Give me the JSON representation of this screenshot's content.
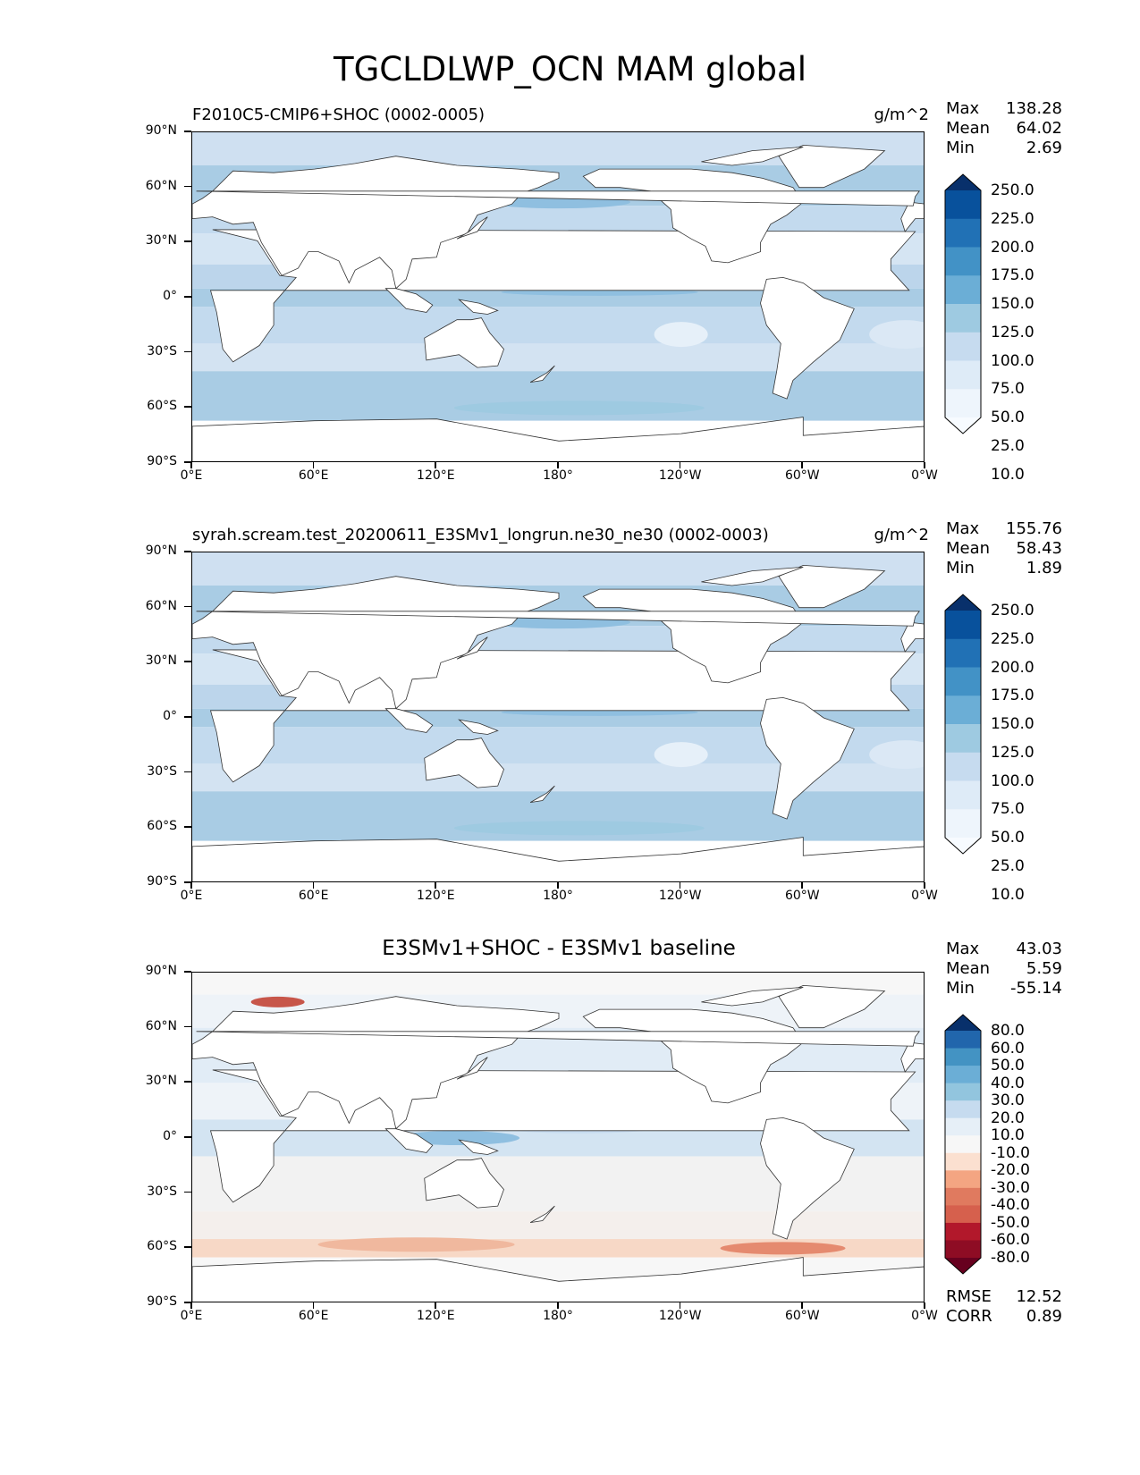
{
  "figure": {
    "title": "TGCLDLWP_OCN MAM global"
  },
  "chart_data": [
    {
      "type": "heatmap",
      "panel": "test",
      "title": "F2010C5-CMIP6+SHOC (0002-0005)",
      "units": "g/m^2",
      "stats": {
        "max_label": "Max",
        "max": "138.28",
        "mean_label": "Mean",
        "mean": "64.02",
        "min_label": "Min",
        "min": "2.69"
      },
      "colorbar_levels": [
        "250.0",
        "225.0",
        "200.0",
        "175.0",
        "150.0",
        "125.0",
        "100.0",
        "75.0",
        "50.0",
        "25.0",
        "10.0"
      ],
      "colorbar_colors": [
        "#08306b",
        "#08519c",
        "#2171b5",
        "#4292c6",
        "#6baed6",
        "#9ecae1",
        "#c6dbef",
        "#deebf7",
        "#eef5fc",
        "#f7fbff"
      ],
      "xlabels": [
        "0°E",
        "60°E",
        "120°E",
        "180°",
        "120°W",
        "60°W",
        "0°W"
      ],
      "ylabels": [
        "90°N",
        "60°N",
        "30°N",
        "0°",
        "30°S",
        "60°S",
        "90°S"
      ]
    },
    {
      "type": "heatmap",
      "panel": "reference",
      "title": "syrah.scream.test_20200611_E3SMv1_longrun.ne30_ne30 (0002-0003)",
      "units": "g/m^2",
      "stats": {
        "max_label": "Max",
        "max": "155.76",
        "mean_label": "Mean",
        "mean": "58.43",
        "min_label": "Min",
        "min": "1.89"
      },
      "colorbar_levels": [
        "250.0",
        "225.0",
        "200.0",
        "175.0",
        "150.0",
        "125.0",
        "100.0",
        "75.0",
        "50.0",
        "25.0",
        "10.0"
      ],
      "colorbar_colors": [
        "#08306b",
        "#08519c",
        "#2171b5",
        "#4292c6",
        "#6baed6",
        "#9ecae1",
        "#c6dbef",
        "#deebf7",
        "#eef5fc",
        "#f7fbff"
      ],
      "xlabels": [
        "0°E",
        "60°E",
        "120°E",
        "180°",
        "120°W",
        "60°W",
        "0°W"
      ],
      "ylabels": [
        "90°N",
        "60°N",
        "30°N",
        "0°",
        "30°S",
        "60°S",
        "90°S"
      ]
    },
    {
      "type": "heatmap",
      "panel": "difference",
      "title": "E3SMv1+SHOC - E3SMv1 baseline",
      "units": "",
      "stats": {
        "max_label": "Max",
        "max": "43.03",
        "mean_label": "Mean",
        "mean": "5.59",
        "min_label": "Min",
        "min": "-55.14"
      },
      "extra_stats": {
        "rmse_label": "RMSE",
        "rmse": "12.52",
        "corr_label": "CORR",
        "corr": "0.89"
      },
      "colorbar_levels": [
        "80.0",
        "60.0",
        "50.0",
        "40.0",
        "30.0",
        "20.0",
        "10.0",
        "-10.0",
        "-20.0",
        "-30.0",
        "-40.0",
        "-50.0",
        "-60.0",
        "-80.0"
      ],
      "colorbar_colors": [
        "#08306b",
        "#2166ac",
        "#4393c3",
        "#6baed6",
        "#92c5de",
        "#c6dbef",
        "#e6eff7",
        "#f7f7f7",
        "#fbe0d0",
        "#f4a582",
        "#e07a5f",
        "#d6604d",
        "#b2182b",
        "#8e0c24",
        "#67001f"
      ],
      "xlabels": [
        "0°E",
        "60°E",
        "120°E",
        "180°",
        "120°W",
        "60°W",
        "0°W"
      ],
      "ylabels": [
        "90°N",
        "60°N",
        "30°N",
        "0°",
        "30°S",
        "60°S",
        "90°S"
      ]
    }
  ]
}
